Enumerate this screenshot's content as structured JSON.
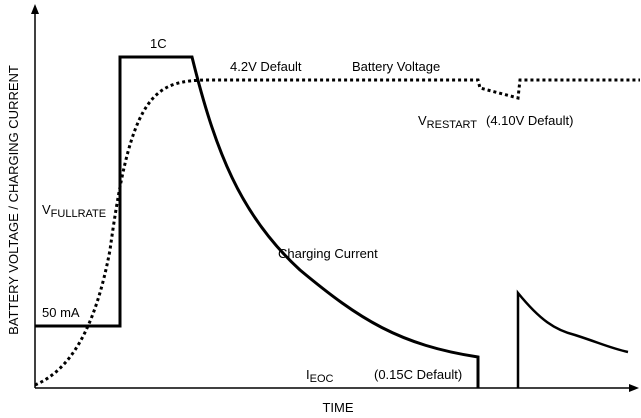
{
  "axes": {
    "y_label": "BATTERY VOLTAGE / CHARGING CURRENT",
    "x_label": "TIME"
  },
  "labels": {
    "one_c": "1C",
    "default_voltage": "4.2V Default",
    "battery_voltage": "Battery Voltage",
    "v_restart": {
      "main": "V",
      "sub": "RESTART"
    },
    "v_restart_default": "(4.10V Default)",
    "v_fullrate": {
      "main": "V",
      "sub": "FULLRATE"
    },
    "charging_current": "Charging Current",
    "trickle_current": "50 mA",
    "i_eoc": {
      "main": "I",
      "sub": "EOC"
    },
    "i_eoc_default": "(0.15C Default)"
  }
}
